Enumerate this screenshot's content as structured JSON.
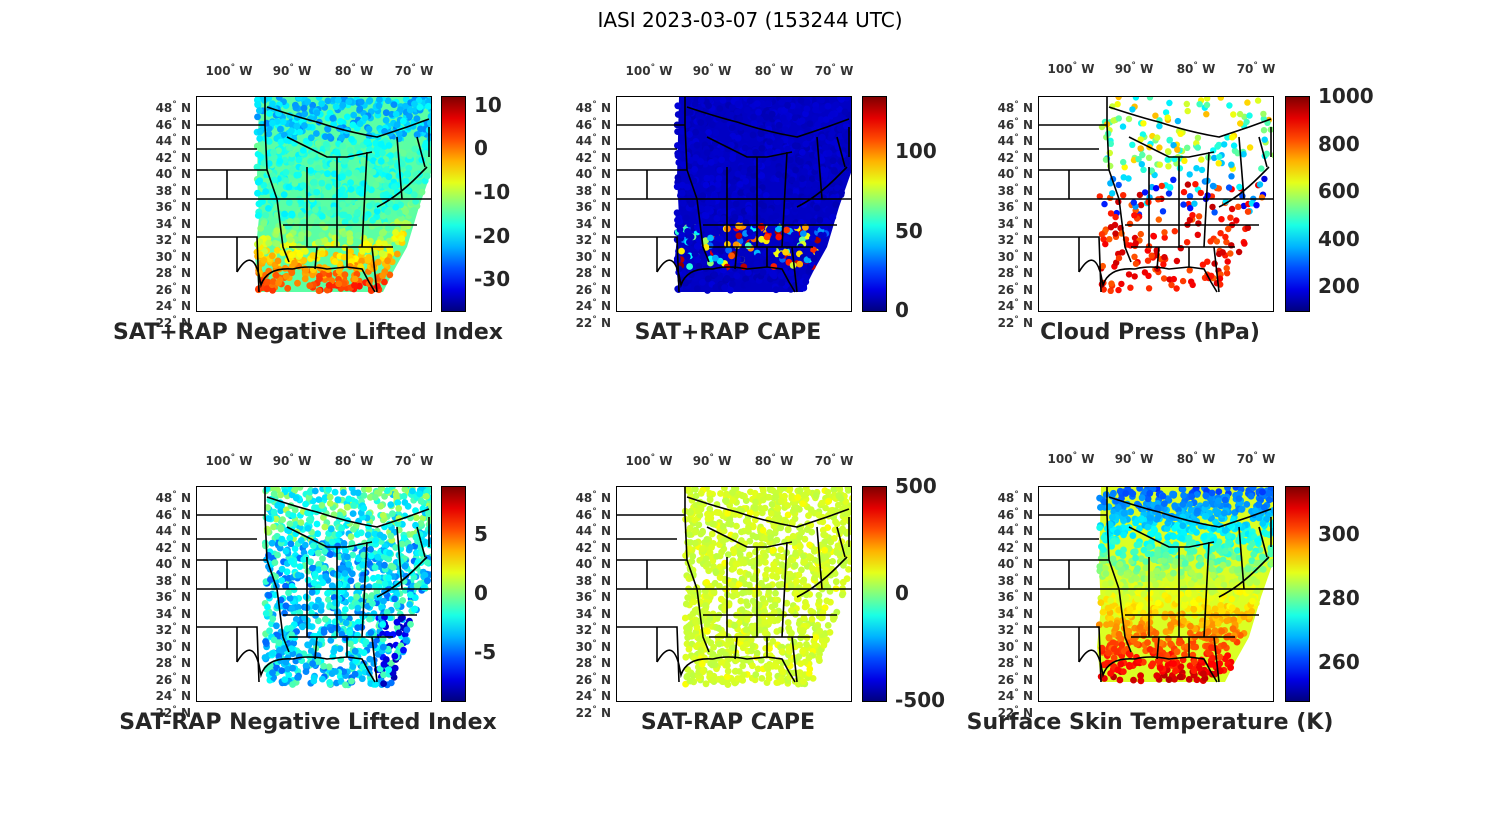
{
  "title": "IASI 2023-03-07 (153244 UTC)",
  "lon_labels": [
    {
      "value": "100",
      "suffix": "W"
    },
    {
      "value": "90",
      "suffix": "W"
    },
    {
      "value": "80",
      "suffix": "W"
    },
    {
      "value": "70",
      "suffix": "W"
    }
  ],
  "lat_labels": [
    {
      "value": "48",
      "suffix": "N"
    },
    {
      "value": "46",
      "suffix": "N"
    },
    {
      "value": "44",
      "suffix": "N"
    },
    {
      "value": "42",
      "suffix": "N"
    },
    {
      "value": "40",
      "suffix": "N"
    },
    {
      "value": "38",
      "suffix": "N"
    },
    {
      "value": "36",
      "suffix": "N"
    },
    {
      "value": "34",
      "suffix": "N"
    },
    {
      "value": "32",
      "suffix": "N"
    },
    {
      "value": "30",
      "suffix": "N"
    },
    {
      "value": "28",
      "suffix": "N"
    },
    {
      "value": "26",
      "suffix": "N"
    },
    {
      "value": "24",
      "suffix": "N"
    },
    {
      "value": "22",
      "suffix": "N"
    }
  ],
  "colormap": "jet",
  "panels": [
    {
      "id": "sat-rap-sum-nli",
      "title": "SAT+RAP Negative Lifted Index",
      "colorbar_ticks": [
        "10",
        "0",
        "-10",
        "-20",
        "-30"
      ],
      "clim": [
        -37,
        12
      ]
    },
    {
      "id": "sat-rap-sum-cape",
      "title": "SAT+RAP CAPE",
      "colorbar_ticks": [
        "100",
        "50",
        "0"
      ],
      "clim": [
        0,
        135
      ]
    },
    {
      "id": "cloud-press",
      "title": "Cloud Press (hPa)",
      "colorbar_ticks": [
        "1000",
        "800",
        "600",
        "400",
        "200"
      ],
      "clim": [
        100,
        1000
      ]
    },
    {
      "id": "sat-rap-diff-nli",
      "title": "SAT-RAP Negative Lifted Index",
      "colorbar_ticks": [
        "5",
        "0",
        "-5"
      ],
      "clim": [
        -9,
        9
      ]
    },
    {
      "id": "sat-rap-diff-cape",
      "title": "SAT-RAP CAPE",
      "colorbar_ticks": [
        "500",
        "0",
        "-500"
      ],
      "clim": [
        -500,
        500
      ]
    },
    {
      "id": "surface-skin-temp",
      "title": "Surface Skin Temperature (K)",
      "colorbar_ticks": [
        "300",
        "280",
        "260"
      ],
      "clim": [
        248,
        315
      ]
    }
  ]
}
